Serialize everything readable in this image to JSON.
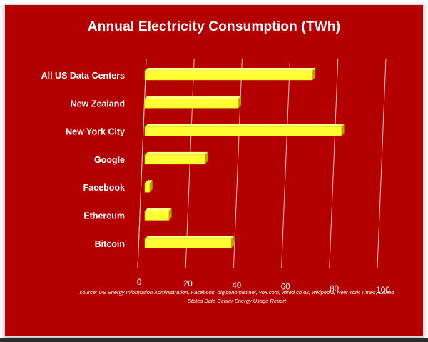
{
  "chart_data": {
    "type": "bar",
    "orientation": "horizontal",
    "title": "Annual Electricity Consumption (TWh)",
    "categories": [
      "All US Data Centers",
      "New Zealand",
      "New York City",
      "Google",
      "Facebook",
      "Ethereum",
      "Bitcoin"
    ],
    "values": [
      70,
      39,
      82,
      25,
      2,
      10,
      36
    ],
    "xlim": [
      0,
      100
    ],
    "x_ticks": [
      "0",
      "20",
      "40",
      "60",
      "80",
      "100"
    ],
    "grid": true,
    "legend": "none",
    "source": "source:  US Energy Information Administration,  Facebook, digiconomist.net, vox.com, wired.co.uk, wikipedia, New York Times, United States Data Center Energy Usage Report",
    "colors": {
      "background": "#b30000",
      "bar_face": "#ffff33",
      "bar_side": "#b8a400",
      "grid": "#e8c0c0",
      "text": "#ffffff"
    }
  }
}
